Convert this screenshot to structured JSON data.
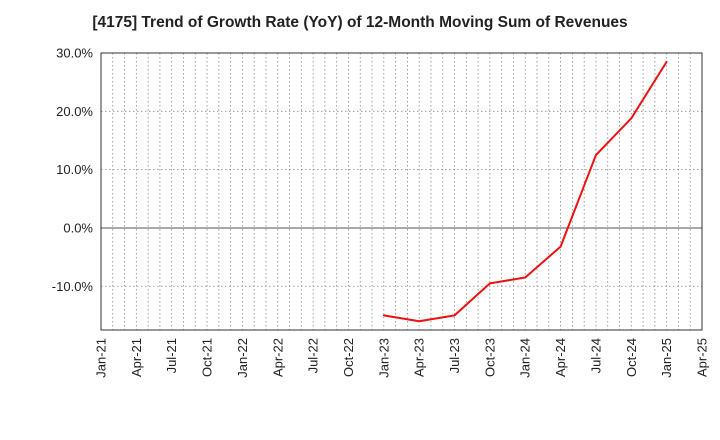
{
  "chart_data": {
    "type": "line",
    "title": "[4175]  Trend of Growth Rate (YoY) of 12-Month Moving Sum of Revenues",
    "xlabel": "",
    "ylabel": "",
    "x_ticks": [
      "Jan-21",
      "Apr-21",
      "Jul-21",
      "Oct-21",
      "Jan-22",
      "Apr-22",
      "Jul-22",
      "Oct-22",
      "Jan-23",
      "Apr-23",
      "Jul-23",
      "Oct-23",
      "Jan-24",
      "Apr-24",
      "Jul-24",
      "Oct-24",
      "Jan-25",
      "Apr-25"
    ],
    "y_ticks": [
      "30.0%",
      "20.0%",
      "10.0%",
      "0.0%",
      "-10.0%"
    ],
    "y_tick_values": [
      30,
      20,
      10,
      0,
      -10
    ],
    "ylim": [
      -17.5,
      30
    ],
    "xlim": [
      "Jan-21",
      "Apr-25"
    ],
    "grid": true,
    "series": [
      {
        "color": "#ee1111",
        "points": [
          {
            "x": "Jan-23",
            "y": -15.0
          },
          {
            "x": "Apr-23",
            "y": -16.0
          },
          {
            "x": "Jul-23",
            "y": -15.0
          },
          {
            "x": "Oct-23",
            "y": -9.5
          },
          {
            "x": "Jan-24",
            "y": -8.5
          },
          {
            "x": "Apr-24",
            "y": -3.2
          },
          {
            "x": "Jul-24",
            "y": 12.5
          },
          {
            "x": "Oct-24",
            "y": 18.8
          },
          {
            "x": "Jan-25",
            "y": 28.5
          }
        ]
      }
    ]
  }
}
